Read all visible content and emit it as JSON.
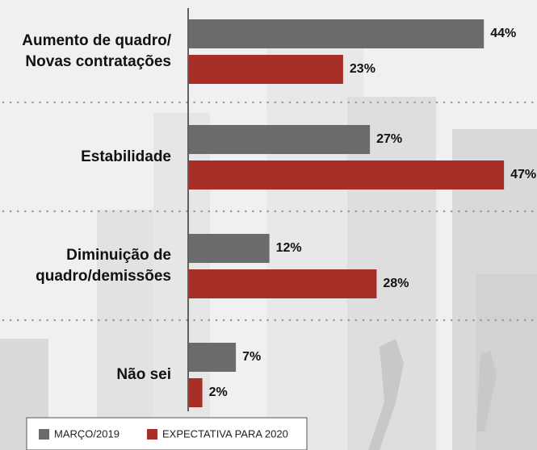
{
  "chart_data": {
    "type": "bar",
    "categories": [
      [
        "Aumento de quadro/",
        "Novas contratações"
      ],
      [
        "Estabilidade"
      ],
      [
        "Diminuição de",
        "quadro/demissões"
      ],
      [
        "Não sei"
      ]
    ],
    "series": [
      {
        "name": "MARÇO/2019",
        "color": "#6b6b6b",
        "values": [
          44,
          27,
          12,
          7
        ],
        "value_labels": [
          "44%",
          "27%",
          "12%",
          "7%"
        ]
      },
      {
        "name": "EXPECTATIVA PARA 2020",
        "color": "#a82e28",
        "values": [
          23,
          47,
          28,
          2
        ],
        "value_labels": [
          "23%",
          "47%",
          "28%",
          "2%"
        ]
      }
    ]
  }
}
